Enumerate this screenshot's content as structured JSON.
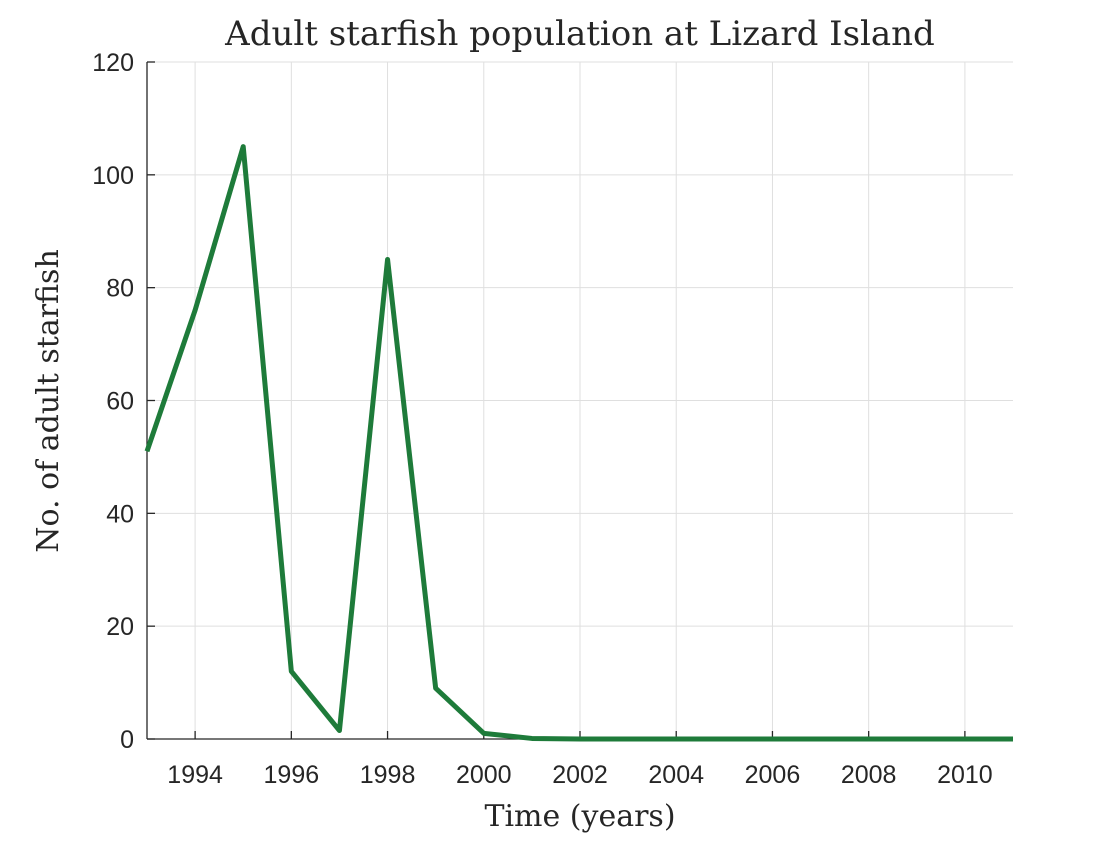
{
  "chart_data": {
    "type": "line",
    "title": "Adult starfish population at Lizard Island",
    "xlabel": "Time (years)",
    "ylabel": "No. of adult starfish",
    "xlim": [
      1993,
      2011
    ],
    "ylim": [
      0,
      120
    ],
    "xticks": [
      1994,
      1996,
      1998,
      2000,
      2002,
      2004,
      2006,
      2008,
      2010
    ],
    "yticks": [
      0,
      20,
      40,
      60,
      80,
      100,
      120
    ],
    "grid": true,
    "series": [
      {
        "color": "#1e7b3a",
        "x": [
          1993,
          1994,
          1995,
          1996,
          1997,
          1998,
          1999,
          2000,
          2001,
          2002,
          2003,
          2004,
          2005,
          2006,
          2007,
          2008,
          2009,
          2010,
          2011
        ],
        "y": [
          51,
          76,
          105,
          12,
          1.5,
          85,
          9,
          1,
          0.1,
          0,
          0,
          0,
          0,
          0,
          0,
          0,
          0,
          0,
          0
        ]
      }
    ],
    "colors": {
      "axis": "#262626",
      "grid": "#dfdfdf",
      "background": "#ffffff"
    }
  }
}
